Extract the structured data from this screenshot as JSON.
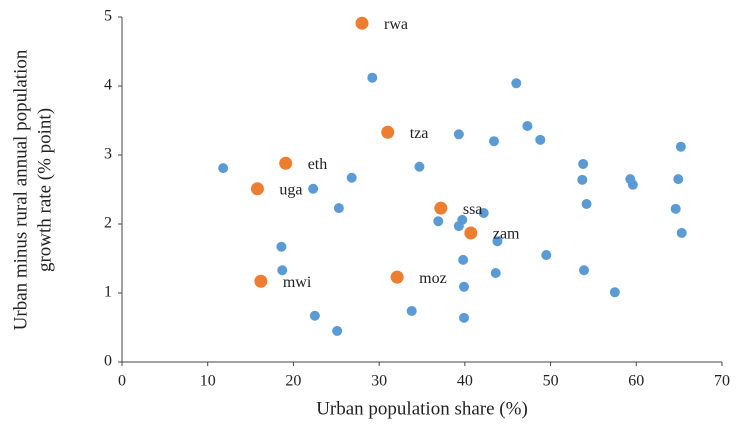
{
  "chart_data": {
    "type": "scatter",
    "xlabel": "Urban population share (%)",
    "ylabel": [
      "Urban minus rural annual population",
      "growth rate (% point)"
    ],
    "xlim": [
      0,
      70
    ],
    "xticks": [
      0,
      10,
      20,
      30,
      40,
      50,
      60,
      70
    ],
    "ylim": [
      0,
      5
    ],
    "yticks": [
      0,
      1,
      2,
      3,
      4,
      5
    ],
    "grid": false,
    "series": [
      {
        "color": "#5b9bd5",
        "x": [
          11.8,
          29.2,
          46.0,
          39.3,
          47.3,
          43.4,
          48.8,
          34.7,
          26.8,
          22.3,
          25.3,
          53.8,
          53.7,
          54.2,
          59.3,
          59.6,
          64.9,
          65.2,
          64.6,
          65.3,
          36.9,
          39.7,
          39.3,
          42.2,
          43.8,
          49.5,
          18.6,
          18.7,
          39.8,
          43.6,
          53.9,
          57.5,
          39.9,
          22.5,
          33.8,
          39.9,
          25.1
        ],
        "values": [
          2.81,
          4.12,
          4.04,
          3.3,
          3.42,
          3.2,
          3.22,
          2.83,
          2.67,
          2.51,
          2.23,
          2.87,
          2.64,
          2.29,
          2.65,
          2.57,
          2.65,
          3.12,
          2.22,
          1.87,
          2.04,
          2.06,
          1.97,
          2.16,
          1.75,
          1.55,
          1.67,
          1.33,
          1.48,
          1.29,
          1.33,
          1.01,
          1.09,
          0.67,
          0.74,
          0.64,
          0.45
        ]
      },
      {
        "color": "#ed7d31",
        "x": [
          28.0,
          31.0,
          19.1,
          15.8,
          37.2,
          40.7,
          32.1,
          16.2
        ],
        "values": [
          4.91,
          3.33,
          2.88,
          2.51,
          2.23,
          1.87,
          1.23,
          1.17
        ],
        "point_labels": [
          "rwa",
          "tza",
          "eth",
          "uga",
          "ssa",
          "zam",
          "moz",
          "mwi"
        ]
      }
    ]
  }
}
